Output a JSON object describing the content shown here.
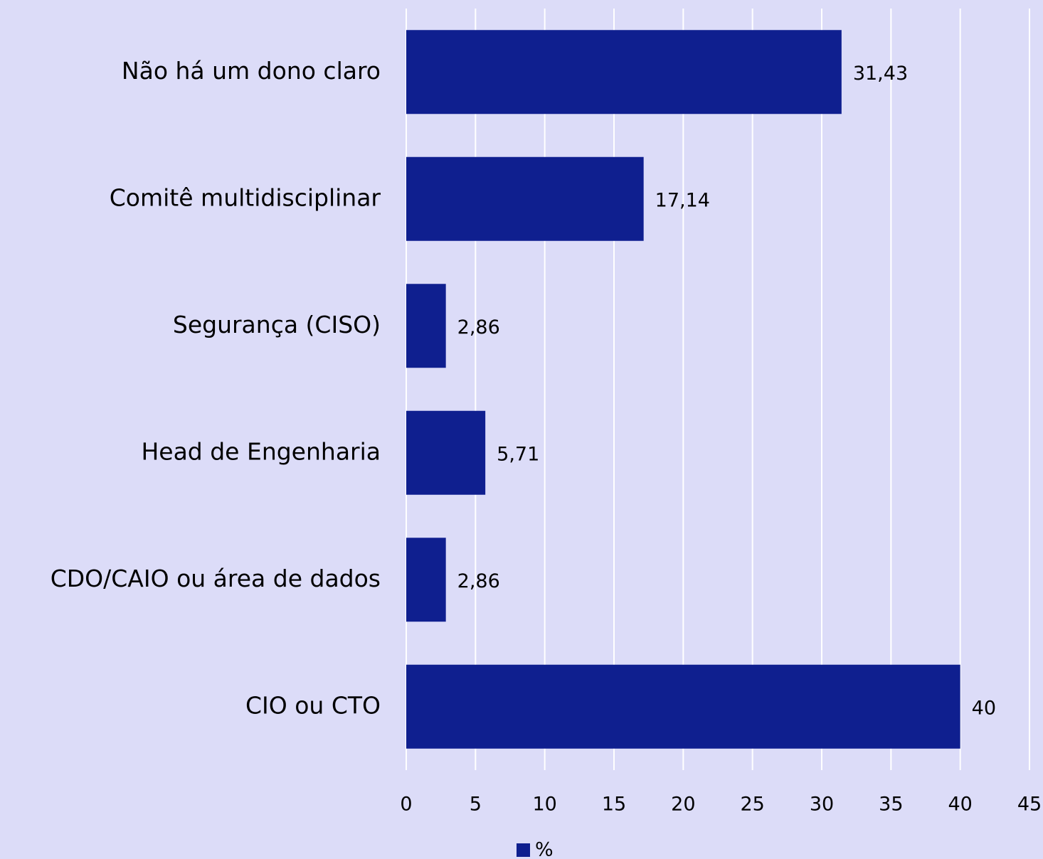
{
  "chart_data": {
    "type": "barh",
    "categories": [
      "Não há um dono claro",
      "Comitê multidisciplinar",
      "Segurança (CISO)",
      "Head de Engenharia",
      "CDO/CAIO ou área de dados",
      "CIO ou CTO"
    ],
    "series": [
      {
        "name": "%",
        "color": "#0f1f8f",
        "values": [
          31.43,
          17.14,
          2.86,
          5.71,
          2.86,
          40
        ],
        "value_labels": [
          "31,43",
          "17,14",
          "2,86",
          "5,71",
          "2,86",
          "40"
        ]
      }
    ],
    "xlim": [
      0,
      45
    ],
    "xticks": [
      0,
      5,
      10,
      15,
      20,
      25,
      30,
      35,
      40,
      45
    ],
    "grid": true,
    "legend": "bottom",
    "background": "#dcdcf8",
    "grid_color": "#ffffff"
  }
}
